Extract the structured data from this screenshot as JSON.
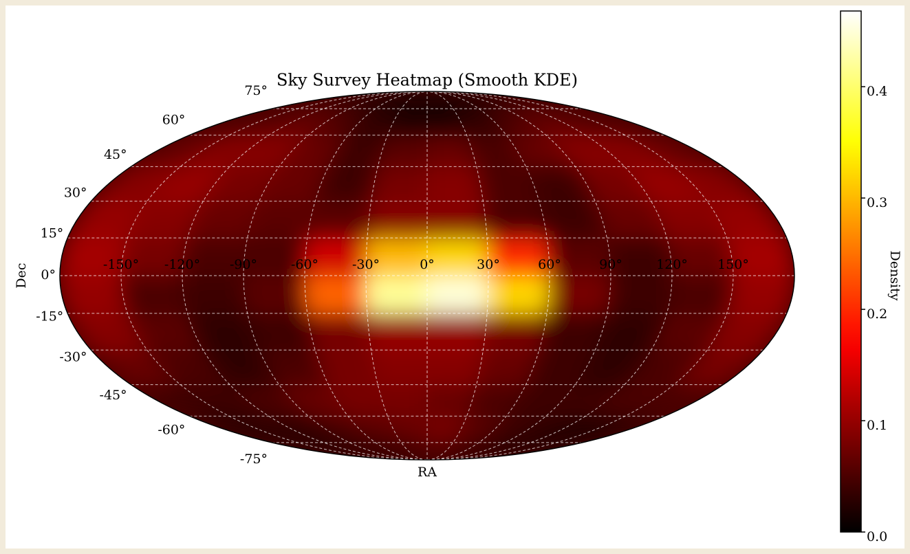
{
  "chart_data": {
    "type": "heatmap",
    "projection": "mollweide",
    "title": "Sky Survey Heatmap (Smooth KDE)",
    "x_label": "RA",
    "y_label": "Dec",
    "colorbar_label": "Density",
    "colormap": "hot",
    "grid": true,
    "x": [
      -165,
      -135,
      -105,
      -75,
      -45,
      -15,
      15,
      45,
      75,
      105,
      135,
      165
    ],
    "y": [
      -82.5,
      -67.5,
      -52.5,
      -37.5,
      -22.5,
      -7.5,
      7.5,
      22.5,
      37.5,
      52.5,
      67.5,
      82.5
    ],
    "z": [
      [
        0.02,
        0.02,
        0.02,
        0.03,
        0.03,
        0.04,
        0.05,
        0.04,
        0.03,
        0.02,
        0.02,
        0.02
      ],
      [
        0.02,
        0.03,
        0.03,
        0.05,
        0.06,
        0.07,
        0.08,
        0.06,
        0.04,
        0.03,
        0.02,
        0.02
      ],
      [
        0.04,
        0.04,
        0.05,
        0.07,
        0.08,
        0.08,
        0.07,
        0.05,
        0.04,
        0.04,
        0.05,
        0.05
      ],
      [
        0.07,
        0.05,
        0.03,
        0.05,
        0.08,
        0.09,
        0.09,
        0.07,
        0.04,
        0.03,
        0.05,
        0.08
      ],
      [
        0.09,
        0.06,
        0.03,
        0.04,
        0.08,
        0.1,
        0.1,
        0.08,
        0.04,
        0.03,
        0.06,
        0.09
      ],
      [
        0.1,
        0.05,
        0.04,
        0.06,
        0.24,
        0.42,
        0.45,
        0.32,
        0.08,
        0.04,
        0.05,
        0.1
      ],
      [
        0.11,
        0.08,
        0.05,
        0.05,
        0.14,
        0.3,
        0.32,
        0.2,
        0.06,
        0.04,
        0.07,
        0.11
      ],
      [
        0.1,
        0.09,
        0.07,
        0.06,
        0.06,
        0.09,
        0.09,
        0.05,
        0.04,
        0.07,
        0.09,
        0.1
      ],
      [
        0.09,
        0.1,
        0.08,
        0.07,
        0.04,
        0.08,
        0.09,
        0.05,
        0.04,
        0.08,
        0.1,
        0.09
      ],
      [
        0.07,
        0.09,
        0.09,
        0.07,
        0.04,
        0.06,
        0.07,
        0.05,
        0.07,
        0.09,
        0.09,
        0.07
      ],
      [
        0.05,
        0.06,
        0.07,
        0.05,
        0.03,
        0.02,
        0.02,
        0.03,
        0.05,
        0.07,
        0.06,
        0.05
      ],
      [
        0.03,
        0.03,
        0.03,
        0.02,
        0.02,
        0.02,
        0.02,
        0.02,
        0.02,
        0.03,
        0.03,
        0.03
      ]
    ],
    "xlim": [
      -180,
      180
    ],
    "ylim": [
      -90,
      90
    ],
    "xticks": [
      {
        "value": -150,
        "label": "-150°"
      },
      {
        "value": -120,
        "label": "-120°"
      },
      {
        "value": -90,
        "label": "-90°"
      },
      {
        "value": -60,
        "label": "-60°"
      },
      {
        "value": -30,
        "label": "-30°"
      },
      {
        "value": 0,
        "label": "0°"
      },
      {
        "value": 30,
        "label": "30°"
      },
      {
        "value": 60,
        "label": "60°"
      },
      {
        "value": 90,
        "label": "90°"
      },
      {
        "value": 120,
        "label": "120°"
      },
      {
        "value": 150,
        "label": "150°"
      }
    ],
    "yticks": [
      {
        "value": -75,
        "label": "-75°"
      },
      {
        "value": -60,
        "label": "-60°"
      },
      {
        "value": -45,
        "label": "-45°"
      },
      {
        "value": -30,
        "label": "-30°"
      },
      {
        "value": -15,
        "label": "-15°"
      },
      {
        "value": 0,
        "label": "0°"
      },
      {
        "value": 15,
        "label": "15°"
      },
      {
        "value": 30,
        "label": "30°"
      },
      {
        "value": 45,
        "label": "45°"
      },
      {
        "value": 60,
        "label": "60°"
      },
      {
        "value": 75,
        "label": "75°"
      }
    ],
    "clim": [
      0,
      0.468
    ],
    "cticks": [
      {
        "value": 0,
        "label": "0.0"
      },
      0.1,
      0.2,
      0.3,
      0.4
    ]
  }
}
